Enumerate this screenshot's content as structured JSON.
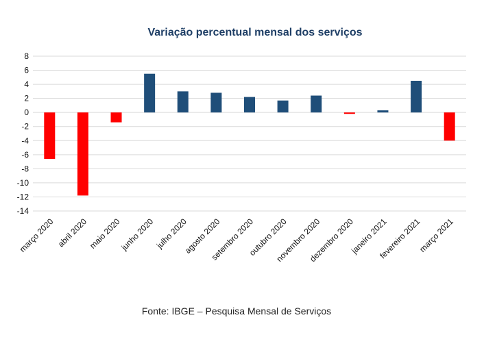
{
  "chart_data": {
    "type": "bar",
    "title": "Variação percentual mensal dos serviços",
    "categories": [
      "março 2020",
      "abril 2020",
      "maio 2020",
      "junho 2020",
      "julho 2020",
      "agosto 2020",
      "setembro 2020",
      "outubro 2020",
      "novembro 2020",
      "dezembro 2020",
      "janeiro 2021",
      "fevereiro 2021",
      "março 2021"
    ],
    "values": [
      -6.6,
      -11.8,
      -1.4,
      5.5,
      3.0,
      2.8,
      2.2,
      1.7,
      2.4,
      -0.2,
      0.3,
      4.5,
      -4.0
    ],
    "ylim": [
      -14,
      8
    ],
    "yticks": [
      8,
      6,
      4,
      2,
      0,
      -2,
      -4,
      -6,
      -8,
      -10,
      -12,
      -14
    ],
    "xlabel": "",
    "ylabel": "",
    "grid": true,
    "colors": {
      "positive": "#1f4e79",
      "negative": "#ff0000",
      "grid": "#d9d9d9"
    }
  },
  "footer": {
    "source": "Fonte: IBGE – Pesquisa Mensal de Serviços"
  }
}
